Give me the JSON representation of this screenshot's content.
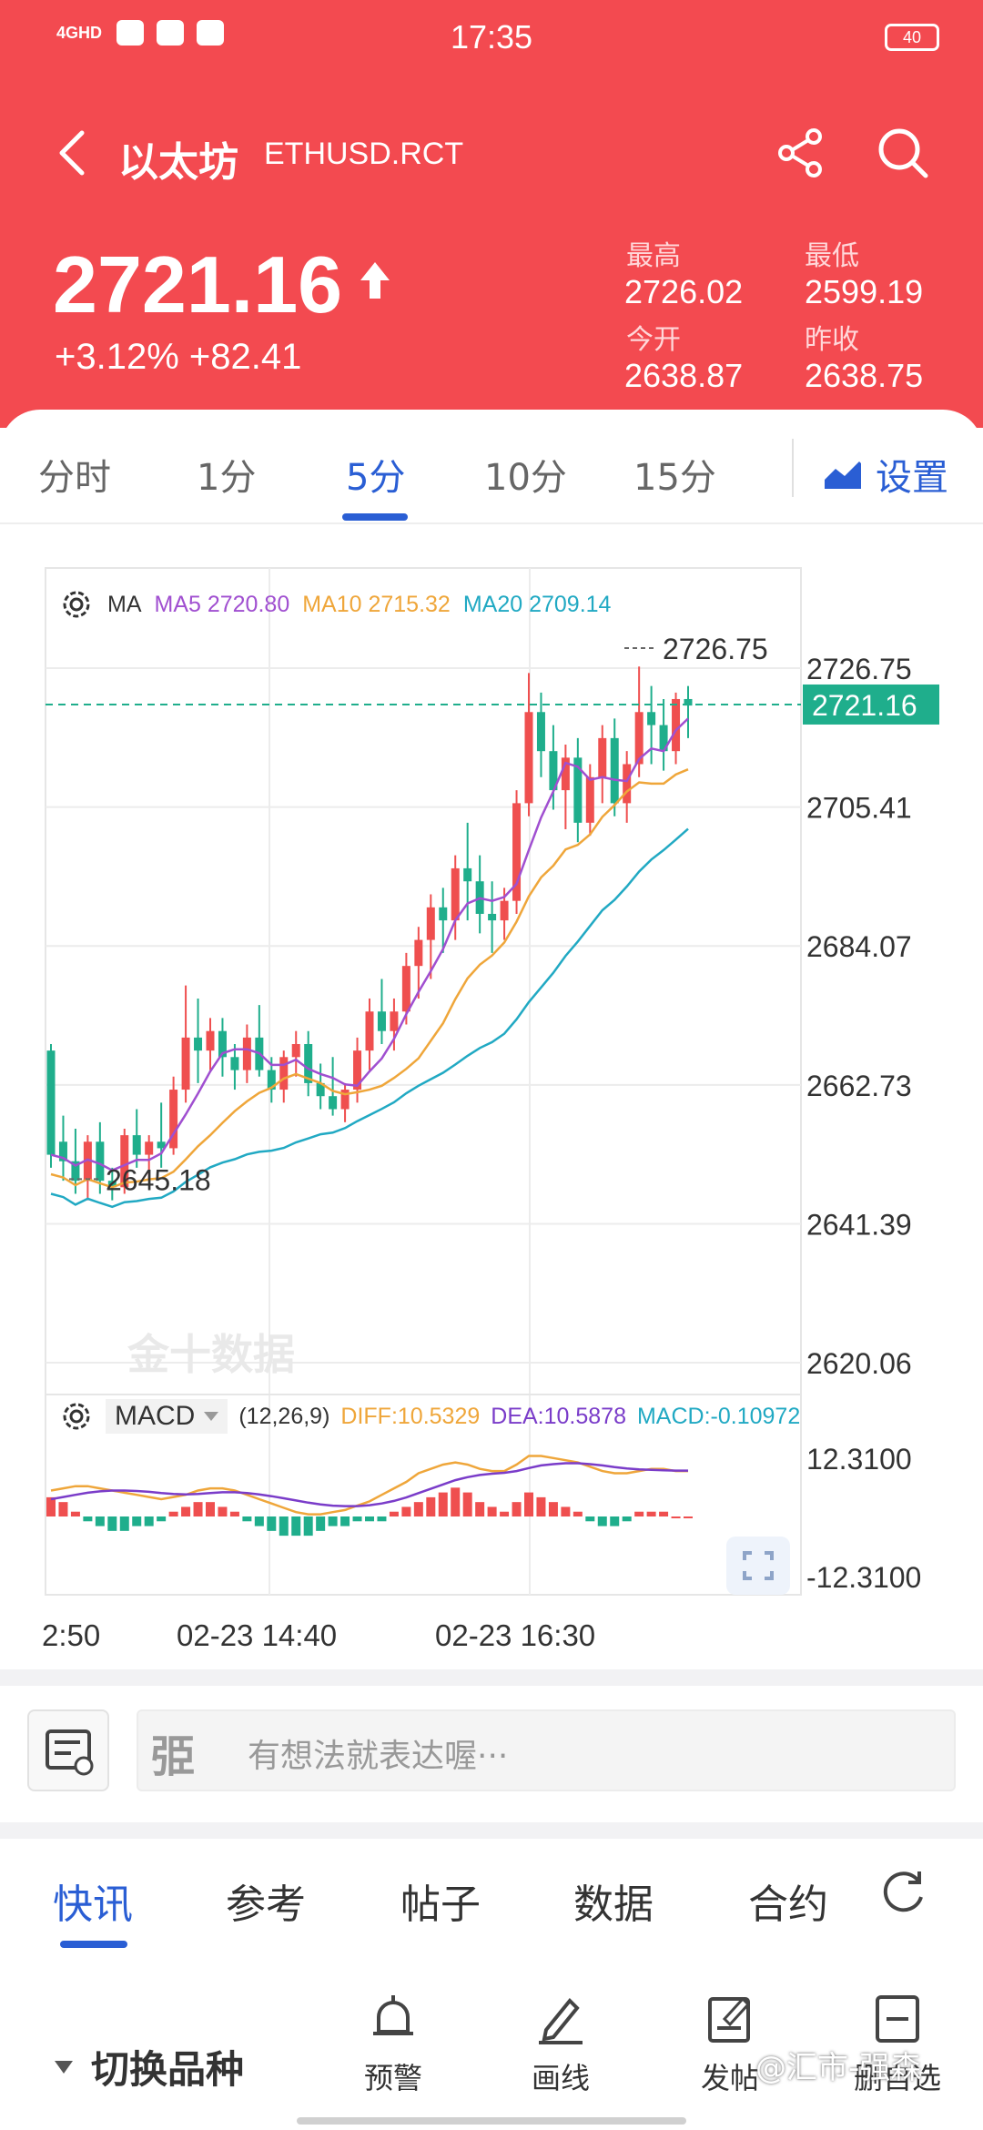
{
  "status": {
    "network": "4GHD",
    "time": "17:35",
    "battery": "40"
  },
  "header": {
    "name_cn": "以太坊",
    "code": "ETHUSD.RCT",
    "price": "2721.16",
    "change": "+3.12% +82.41",
    "stats": {
      "high_label": "最高",
      "high": "2726.02",
      "low_label": "最低",
      "low": "2599.19",
      "open_label": "今开",
      "open": "2638.87",
      "prev_label": "昨收",
      "prev": "2638.75"
    }
  },
  "period_tabs": [
    "分时",
    "1分",
    "5分",
    "10分",
    "15分"
  ],
  "active_period": "5分",
  "settings_label": "设置",
  "ma_legend": {
    "label": "MA",
    "ma5": "MA5 2720.80",
    "ma10": "MA10 2715.32",
    "ma20": "MA20 2709.14"
  },
  "macd_legend": {
    "label": "MACD",
    "params": "(12,26,9)",
    "diff": "DIFF:10.5329",
    "dea": "DEA:10.5878",
    "macd": "MACD:-0.10972"
  },
  "watermark": "金十数据",
  "colors": {
    "header_red": "#f34a50",
    "accent_blue": "#2a5ed4",
    "up": "#ef4f4f",
    "down": "#1fae8c",
    "ma5": "#a04fd0",
    "ma10": "#efa63a",
    "ma20": "#21a9c3"
  },
  "chart_data": [
    {
      "type": "candlestick",
      "y_ticks": [
        "2726.75",
        "2705.41",
        "2684.07",
        "2662.73",
        "2641.39",
        "2620.06"
      ],
      "ylim": [
        2620.06,
        2726.75
      ],
      "last_price_label": "2721.16",
      "max_marker": "2726.75",
      "min_marker": "2645.18",
      "x_ticks": [
        "2:50",
        "02-23 14:40",
        "02-23 16:30"
      ],
      "candles": [
        [
          2668,
          2669,
          2650,
          2652
        ],
        [
          2654,
          2658,
          2648,
          2651
        ],
        [
          2651,
          2656,
          2646,
          2648
        ],
        [
          2648,
          2655,
          2645,
          2654
        ],
        [
          2654,
          2657,
          2646,
          2648
        ],
        [
          2648,
          2650,
          2645,
          2647
        ],
        [
          2647,
          2656,
          2646,
          2655
        ],
        [
          2655,
          2659,
          2650,
          2652
        ],
        [
          2652,
          2655,
          2648,
          2654
        ],
        [
          2654,
          2660,
          2650,
          2653
        ],
        [
          2653,
          2664,
          2652,
          2662
        ],
        [
          2662,
          2678,
          2660,
          2670
        ],
        [
          2670,
          2676,
          2663,
          2668
        ],
        [
          2668,
          2673,
          2665,
          2671
        ],
        [
          2671,
          2673,
          2664,
          2667
        ],
        [
          2667,
          2669,
          2662,
          2665
        ],
        [
          2665,
          2672,
          2663,
          2670
        ],
        [
          2670,
          2675,
          2664,
          2665
        ],
        [
          2665,
          2667,
          2660,
          2662
        ],
        [
          2662,
          2668,
          2660,
          2667
        ],
        [
          2667,
          2671,
          2664,
          2669
        ],
        [
          2669,
          2671,
          2661,
          2663
        ],
        [
          2663,
          2666,
          2659,
          2661
        ],
        [
          2661,
          2667,
          2658,
          2659
        ],
        [
          2659,
          2663,
          2657,
          2662
        ],
        [
          2662,
          2670,
          2660,
          2668
        ],
        [
          2668,
          2676,
          2665,
          2674
        ],
        [
          2674,
          2679,
          2669,
          2671
        ],
        [
          2671,
          2676,
          2668,
          2674
        ],
        [
          2674,
          2683,
          2672,
          2681
        ],
        [
          2681,
          2687,
          2676,
          2685
        ],
        [
          2685,
          2692,
          2679,
          2690
        ],
        [
          2690,
          2693,
          2683,
          2688
        ],
        [
          2688,
          2698,
          2685,
          2696
        ],
        [
          2696,
          2703,
          2688,
          2694
        ],
        [
          2694,
          2698,
          2686,
          2689
        ],
        [
          2689,
          2694,
          2683,
          2688
        ],
        [
          2688,
          2693,
          2685,
          2691
        ],
        [
          2691,
          2708,
          2689,
          2706
        ],
        [
          2706,
          2726,
          2704,
          2720
        ],
        [
          2720,
          2723,
          2710,
          2714
        ],
        [
          2714,
          2718,
          2705,
          2708
        ],
        [
          2708,
          2715,
          2702,
          2713
        ],
        [
          2713,
          2716,
          2700,
          2703
        ],
        [
          2703,
          2712,
          2701,
          2710
        ],
        [
          2710,
          2718,
          2706,
          2716
        ],
        [
          2716,
          2719,
          2704,
          2706
        ],
        [
          2706,
          2714,
          2703,
          2712
        ],
        [
          2712,
          2727,
          2710,
          2720
        ],
        [
          2720,
          2724,
          2712,
          2718
        ],
        [
          2718,
          2722,
          2711,
          2714
        ],
        [
          2714,
          2723,
          2712,
          2722
        ],
        [
          2722,
          2724,
          2716,
          2721
        ]
      ]
    },
    {
      "type": "bar",
      "title": "MACD",
      "y_ticks": [
        "12.3100",
        "-12.3100"
      ],
      "ylim": [
        -12.31,
        12.31
      ],
      "values": [
        4,
        3,
        1,
        -1,
        -2,
        -3,
        -3,
        -2,
        -2,
        -1,
        1,
        2,
        3,
        3,
        2,
        1,
        -1,
        -2,
        -3,
        -4,
        -4,
        -4,
        -3,
        -2,
        -2,
        -1,
        -1,
        -1,
        1,
        2,
        3,
        4,
        5,
        6,
        5,
        3,
        2,
        1,
        3,
        5,
        4,
        3,
        2,
        1,
        -1,
        -2,
        -2,
        -1,
        1,
        1,
        1,
        0,
        0
      ],
      "diff": [
        6,
        6.5,
        7,
        7,
        6.5,
        6,
        5.5,
        5,
        4.5,
        4,
        4.5,
        5,
        6,
        6.5,
        6.5,
        6,
        5,
        4,
        3,
        2,
        1,
        0.5,
        0.5,
        1,
        1.5,
        2.5,
        3.5,
        5,
        6.5,
        8,
        10,
        11,
        12,
        12.5,
        12,
        11,
        10.5,
        10.5,
        12,
        14,
        14,
        13.5,
        13,
        12.5,
        11.5,
        10.5,
        10,
        10,
        10.5,
        11,
        11,
        10.5,
        10.5
      ],
      "dea": [
        4,
        4.5,
        5,
        5.5,
        5.8,
        6,
        6,
        5.9,
        5.7,
        5.4,
        5.2,
        5.1,
        5.2,
        5.4,
        5.6,
        5.6,
        5.4,
        5.1,
        4.7,
        4.2,
        3.7,
        3.2,
        2.8,
        2.5,
        2.4,
        2.4,
        2.6,
        3,
        3.6,
        4.4,
        5.4,
        6.4,
        7.4,
        8.4,
        9.1,
        9.6,
        9.9,
        10.1,
        10.5,
        11.2,
        11.8,
        12.1,
        12.3,
        12.3,
        12.1,
        11.8,
        11.4,
        11.1,
        10.9,
        10.8,
        10.7,
        10.6,
        10.6
      ]
    }
  ],
  "comment": {
    "placeholder": "有想法就表达喔···",
    "avatar_glyph": "弫"
  },
  "news_tabs": [
    "快讯",
    "参考",
    "帖子",
    "数据",
    "合约"
  ],
  "bottom": {
    "switch_label": "切换品种",
    "alert_label": "预警",
    "draw_label": "画线",
    "post_label": "发帖",
    "watchlist_label": "删自选",
    "credit": "@汇市-强森"
  }
}
